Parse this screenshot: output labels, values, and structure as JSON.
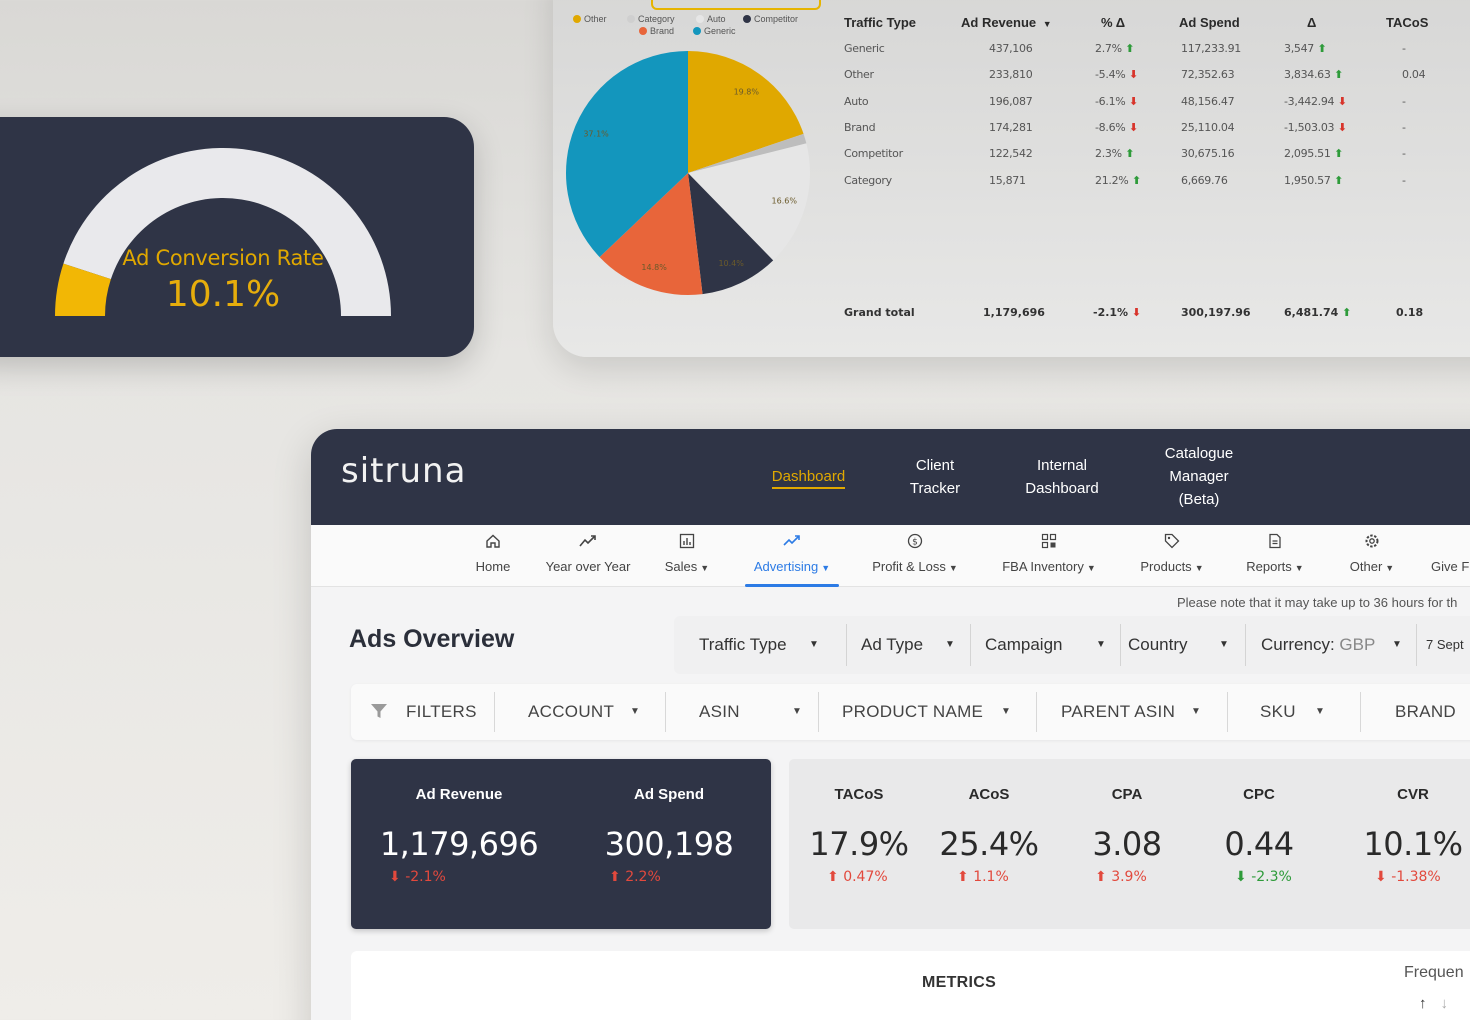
{
  "gauge": {
    "title": "Ad Conversion Rate",
    "value": "10.1%",
    "fill_fraction": 0.101,
    "colors": {
      "fill": "#f2b705",
      "track": "#e9e9ec",
      "card": "#2f3446"
    }
  },
  "traffic_chart": {
    "legend": [
      {
        "label": "Other",
        "color": "#e0a800"
      },
      {
        "label": "Category",
        "color": "#cfcfcf"
      },
      {
        "label": "Auto",
        "color": "#e6e6e6"
      },
      {
        "label": "Competitor",
        "color": "#2f3446"
      },
      {
        "label": "Brand",
        "color": "#e8653a"
      },
      {
        "label": "Generic",
        "color": "#1396bd"
      }
    ],
    "slice_labels": [
      "19.8%",
      "16.6%",
      "10.4%",
      "14.8%",
      "37.1%"
    ]
  },
  "chart_data": {
    "type": "pie",
    "categories": [
      "Other",
      "Category",
      "Auto",
      "Competitor",
      "Brand",
      "Generic"
    ],
    "values": [
      19.8,
      1.3,
      16.6,
      10.4,
      14.8,
      37.1
    ],
    "colors": [
      "#e0a800",
      "#bdbdbd",
      "#e6e6e6",
      "#2f3446",
      "#e8653a",
      "#1396bd"
    ]
  },
  "traffic_table": {
    "headers": [
      "Traffic Type",
      "Ad Revenue",
      "% Δ",
      "Ad Spend",
      "Δ",
      "TACoS"
    ],
    "rows": [
      {
        "type": "Generic",
        "revenue": "437,106",
        "pct": "2.7%",
        "pct_dir": "up",
        "spend": "117,233.91",
        "delta": "3,547",
        "delta_dir": "up",
        "tacos": "-"
      },
      {
        "type": "Other",
        "revenue": "233,810",
        "pct": "-5.4%",
        "pct_dir": "down",
        "spend": "72,352.63",
        "delta": "3,834.63",
        "delta_dir": "up",
        "tacos": "0.04"
      },
      {
        "type": "Auto",
        "revenue": "196,087",
        "pct": "-6.1%",
        "pct_dir": "down",
        "spend": "48,156.47",
        "delta": "-3,442.94",
        "delta_dir": "down",
        "tacos": "-"
      },
      {
        "type": "Brand",
        "revenue": "174,281",
        "pct": "-8.6%",
        "pct_dir": "down",
        "spend": "25,110.04",
        "delta": "-1,503.03",
        "delta_dir": "down",
        "tacos": "-"
      },
      {
        "type": "Competitor",
        "revenue": "122,542",
        "pct": "2.3%",
        "pct_dir": "up",
        "spend": "30,675.16",
        "delta": "2,095.51",
        "delta_dir": "up",
        "tacos": "-"
      },
      {
        "type": "Category",
        "revenue": "15,871",
        "pct": "21.2%",
        "pct_dir": "up",
        "spend": "6,669.76",
        "delta": "1,950.57",
        "delta_dir": "up",
        "tacos": "-"
      }
    ],
    "total": {
      "label": "Grand total",
      "revenue": "1,179,696",
      "pct": "-2.1%",
      "pct_dir": "down",
      "spend": "300,197.96",
      "delta": "6,481.74",
      "delta_dir": "up",
      "tacos": "0.18"
    }
  },
  "app": {
    "logo": "sitruna",
    "top_nav": [
      {
        "label": "Dashboard",
        "active": true
      },
      {
        "label": "Client Tracker"
      },
      {
        "label": "Internal Dashboard"
      },
      {
        "label": "Catalogue Manager (Beta)"
      }
    ],
    "sub_nav": [
      {
        "label": "Home",
        "icon": "home-icon"
      },
      {
        "label": "Year over Year",
        "icon": "trend-icon"
      },
      {
        "label": "Sales",
        "icon": "chart-box-icon",
        "dropdown": true
      },
      {
        "label": "Advertising",
        "icon": "trending-up-icon",
        "dropdown": true,
        "active": true
      },
      {
        "label": "Profit & Loss",
        "icon": "dollar-circle-icon",
        "dropdown": true
      },
      {
        "label": "FBA Inventory",
        "icon": "grid-icon",
        "dropdown": true
      },
      {
        "label": "Products",
        "icon": "tag-icon",
        "dropdown": true
      },
      {
        "label": "Reports",
        "icon": "document-icon",
        "dropdown": true
      },
      {
        "label": "Other",
        "icon": "gear-icon",
        "dropdown": true
      },
      {
        "label": "Give F",
        "icon": ""
      }
    ],
    "note": "Please note that it may take up to 36 hours for th",
    "page_title": "Ads Overview",
    "selectors": [
      {
        "label": "Traffic Type"
      },
      {
        "label": "Ad Type"
      },
      {
        "label": "Campaign"
      },
      {
        "label": "Country"
      },
      {
        "label": "Currency",
        "value": "GBP"
      },
      {
        "label": "7 Sept"
      }
    ],
    "filters": {
      "title": "FILTERS",
      "items": [
        "ACCOUNT",
        "ASIN",
        "PRODUCT NAME",
        "PARENT ASIN",
        "SKU",
        "BRAND"
      ]
    },
    "kpi_primary": [
      {
        "label": "Ad Revenue",
        "value": "1,179,696",
        "change": "-2.1%",
        "dir": "down"
      },
      {
        "label": "Ad Spend",
        "value": "300,198",
        "change": "2.2%",
        "dir": "up"
      }
    ],
    "kpi_secondary": [
      {
        "label": "TACoS",
        "value": "17.9%",
        "change": "0.47%",
        "dir": "up",
        "color": "red"
      },
      {
        "label": "ACoS",
        "value": "25.4%",
        "change": "1.1%",
        "dir": "up",
        "color": "red"
      },
      {
        "label": "CPA",
        "value": "3.08",
        "change": "3.9%",
        "dir": "up",
        "color": "red"
      },
      {
        "label": "CPC",
        "value": "0.44",
        "change": "-2.3%",
        "dir": "down",
        "color": "green"
      },
      {
        "label": "CVR",
        "value": "10.1%",
        "change": "-1.38%",
        "dir": "down",
        "color": "red"
      }
    ],
    "metrics": {
      "title": "METRICS",
      "frequency_label": "Frequen"
    }
  }
}
